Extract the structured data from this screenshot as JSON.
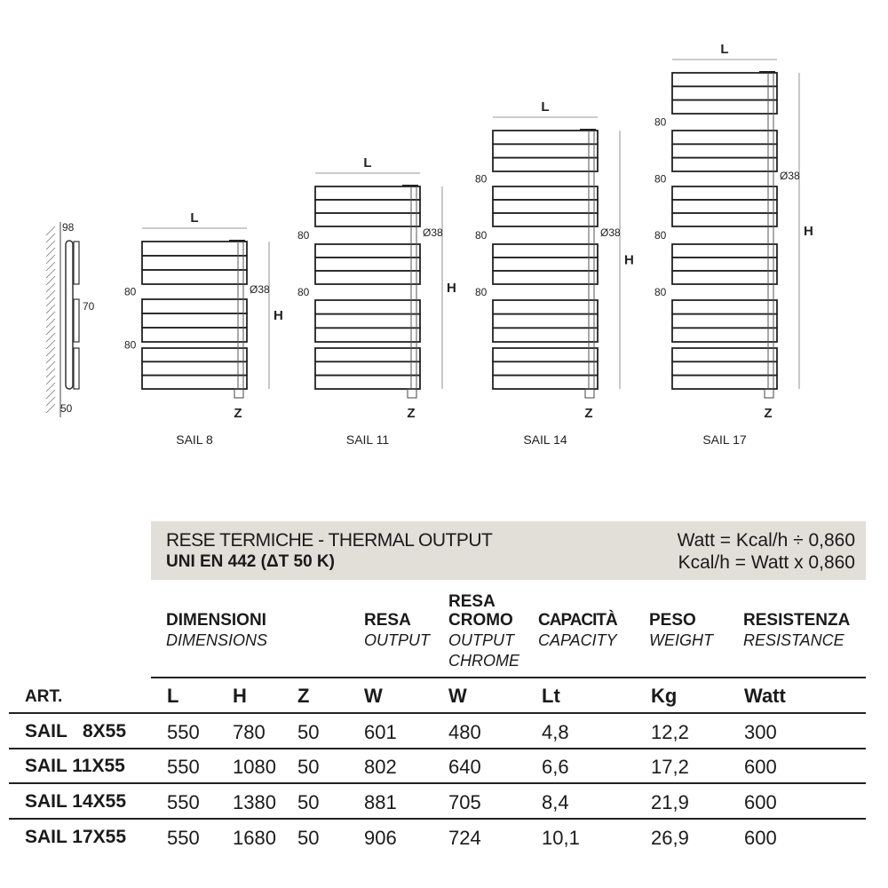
{
  "drawings": {
    "side_view": {
      "depth_label": "98",
      "spacing_label": "70",
      "wall_label": "50"
    },
    "dim_labels": {
      "width": "L",
      "height": "H",
      "connection": "Z",
      "gap": "80",
      "diameter": "Ø38"
    },
    "models": [
      {
        "caption": "SAIL 8",
        "groups": 3
      },
      {
        "caption": "SAIL 11",
        "groups": 4
      },
      {
        "caption": "SAIL 14",
        "groups": 5
      },
      {
        "caption": "SAIL 17",
        "groups": 6
      }
    ]
  },
  "table": {
    "band": {
      "title": "RESE TERMICHE - THERMAL OUTPUT",
      "subtitle": "UNI EN 442 (ΔT 50 K)",
      "formula1": "Watt = Kcal/h ÷ 0,860",
      "formula2": "Kcal/h = Watt x 0,860"
    },
    "headers": [
      {
        "it": "DIMENSIONI",
        "en": "DIMENSIONS"
      },
      {
        "it": "RESA",
        "en": "OUTPUT"
      },
      {
        "it_top": "RESA",
        "it": "CROMO",
        "en": "OUTPUT",
        "en2": "CHROME"
      },
      {
        "it": "CAPACITÀ",
        "en": "CAPACITY"
      },
      {
        "it": "PESO",
        "en": "WEIGHT"
      },
      {
        "it": "RESISTENZA",
        "en": "RESISTANCE"
      }
    ],
    "units": [
      "ART.",
      "L",
      "H",
      "Z",
      "W",
      "W",
      "Lt",
      "Kg",
      "Watt"
    ],
    "rows": [
      [
        "SAIL   8X55",
        "550",
        "780",
        "50",
        "601",
        "480",
        "4,8",
        "12,2",
        "300"
      ],
      [
        "SAIL 11X55",
        "550",
        "1080",
        "50",
        "802",
        "640",
        "6,6",
        "17,2",
        "600"
      ],
      [
        "SAIL 14X55",
        "550",
        "1380",
        "50",
        "881",
        "705",
        "8,4",
        "21,9",
        "600"
      ],
      [
        "SAIL 17X55",
        "550",
        "1680",
        "50",
        "906",
        "724",
        "10,1",
        "26,9",
        "600"
      ]
    ]
  }
}
